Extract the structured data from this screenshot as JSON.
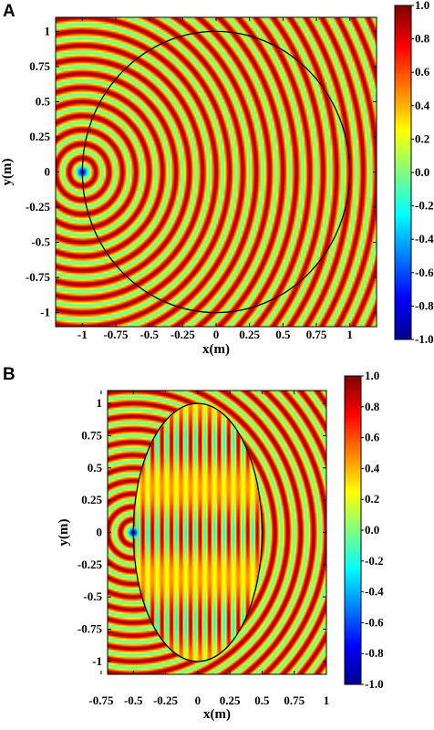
{
  "panels": [
    {
      "letter": "A"
    },
    {
      "letter": "B"
    }
  ],
  "chart_data": [
    {
      "type": "heatmap",
      "panel": "A",
      "title": "",
      "xlabel": "x(m)",
      "ylabel": "y(m)",
      "xlim": [
        -1.2,
        1.2
      ],
      "ylim": [
        -1.1,
        1.1
      ],
      "xticks": [
        -1,
        -0.75,
        -0.5,
        -0.25,
        0,
        0.25,
        0.5,
        0.75,
        1
      ],
      "xtick_labels": [
        "-1",
        "-0.75",
        "-0.5",
        "-0.25",
        "0",
        "0.25",
        "0.5",
        "0.75",
        "1"
      ],
      "yticks": [
        1,
        0.75,
        0.5,
        0.25,
        0,
        -0.25,
        -0.5,
        -0.75,
        -1
      ],
      "ytick_labels": [
        "1",
        "0.75",
        "0.5",
        "0.25",
        "0",
        "-0.25",
        "-0.5",
        "-0.75",
        "-1"
      ],
      "colorbar": {
        "range": [
          -1,
          1
        ],
        "ticks": [
          1.0,
          0.8,
          0.6,
          0.4,
          0.2,
          0.0,
          -0.2,
          -0.4,
          -0.6,
          -0.8,
          -1.0
        ],
        "tick_labels": [
          "1.0",
          "0.8",
          "0.6",
          "0.4",
          "0.2",
          "0.0",
          "-0.2",
          "-0.4",
          "-0.6",
          "-0.8",
          "-1.0"
        ]
      },
      "source": {
        "x": -1,
        "y": 0
      },
      "boundary": {
        "shape": "circle",
        "cx": 0,
        "cy": 0,
        "rx": 1,
        "ry": 1
      },
      "wave_periods_per_m": 10
    },
    {
      "type": "heatmap",
      "panel": "B",
      "title": "",
      "xlabel": "x(m)",
      "ylabel": "y(m)",
      "xlim": [
        -0.7,
        1.0
      ],
      "ylim": [
        -1.1,
        1.1
      ],
      "xticks": [
        -0.75,
        -0.5,
        -0.25,
        0,
        0.25,
        0.5,
        0.75,
        1
      ],
      "xtick_labels": [
        "-0.75",
        "-0.5",
        "-0.25",
        "0",
        "0.25",
        "0.5",
        "0.75",
        "1"
      ],
      "yticks": [
        1,
        0.75,
        0.5,
        0.25,
        0,
        -0.25,
        -0.5,
        -0.75,
        -1
      ],
      "ytick_labels": [
        "1",
        "0.75",
        "0.5",
        "0.25",
        "0",
        "-0.25",
        "-0.5",
        "-0.75",
        "-1"
      ],
      "colorbar": {
        "range": [
          -1,
          1
        ],
        "ticks": [
          1.0,
          0.8,
          0.6,
          0.4,
          0.2,
          0.0,
          -0.2,
          -0.4,
          -0.6,
          -0.8,
          -1.0
        ],
        "tick_labels": [
          "1.0",
          "0.8",
          "0.6",
          "0.4",
          "0.2",
          "0.0",
          "-0.2",
          "-0.4",
          "-0.6",
          "-0.8",
          "-1.0"
        ]
      },
      "source": {
        "x": -0.5,
        "y": 0
      },
      "boundary": {
        "shape": "ellipse",
        "cx": 0,
        "cy": 0,
        "rx": 0.5,
        "ry": 1
      },
      "wave_periods_per_m": 10
    }
  ]
}
